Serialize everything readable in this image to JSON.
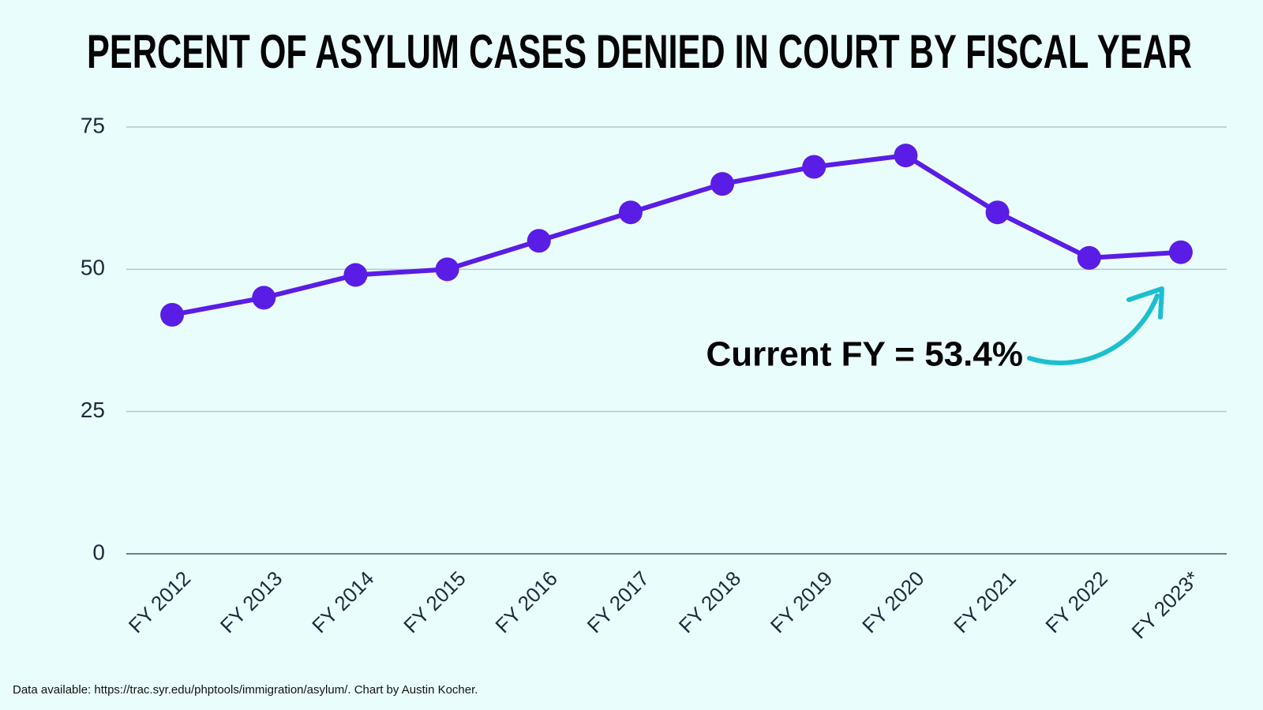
{
  "chart_data": {
    "type": "line",
    "title": "PERCENT OF ASYLUM CASES DENIED IN COURT BY FISCAL YEAR",
    "categories": [
      "FY 2012",
      "FY 2013",
      "FY 2014",
      "FY 2015",
      "FY 2016",
      "FY 2017",
      "FY 2018",
      "FY 2019",
      "FY 2020",
      "FY 2021",
      "FY 2022",
      "FY 2023*"
    ],
    "values": [
      42,
      45,
      49,
      50,
      55,
      60,
      65,
      68,
      70,
      60,
      52,
      53
    ],
    "color": "#5a1de6",
    "ylim": [
      0,
      75
    ],
    "yticks": [
      0,
      25,
      50,
      75
    ],
    "grid": true,
    "annotation": "Current FY = 53.4%",
    "source": "Data available: https://trac.syr.edu/phptools/immigration/asylum/. Chart by Austin Kocher."
  }
}
